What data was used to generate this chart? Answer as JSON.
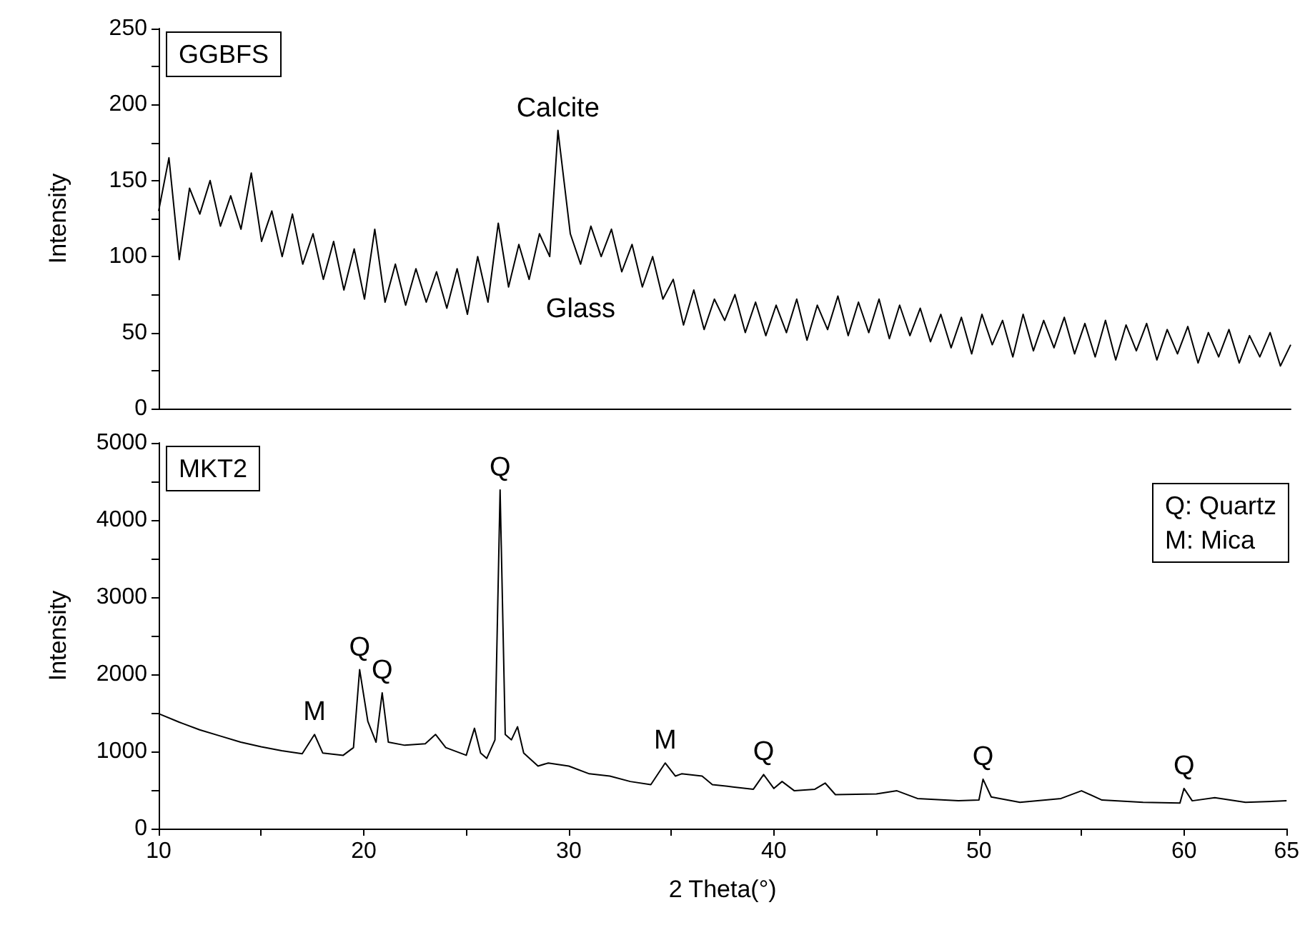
{
  "chart_data": [
    {
      "type": "line",
      "ylabel": "Intensity",
      "xlim": [
        10,
        65
      ],
      "ylim": [
        0,
        250
      ],
      "yticks": [
        0,
        {
          "value": 25,
          "label": null
        },
        50,
        {
          "value": 75,
          "label": null
        },
        100,
        {
          "value": 125,
          "label": null
        },
        150,
        {
          "value": 175,
          "label": null
        },
        200,
        {
          "value": 225,
          "label": null
        },
        250
      ],
      "tick_labels": "y",
      "series": [
        {
          "color": "#000000",
          "x": [
            10,
            10.5,
            11,
            11.5,
            12,
            12.5,
            13,
            13.5,
            14,
            14.5,
            15,
            15.5,
            16,
            16.5,
            17,
            17.5,
            18,
            18.5,
            19,
            19.5,
            20,
            20.5,
            21,
            21.5,
            22,
            22.5,
            23,
            23.5,
            24,
            24.5,
            25,
            25.5,
            26,
            26.5,
            27,
            27.5,
            28,
            28.5,
            29,
            29.4,
            30,
            30.5,
            31,
            31.5,
            32,
            32.5,
            33,
            33.5,
            34,
            34.5,
            35,
            35.5,
            36,
            36.5,
            37,
            37.5,
            38,
            38.5,
            39,
            39.5,
            40,
            40.5,
            41,
            41.5,
            42,
            42.5,
            43,
            43.5,
            44,
            44.5,
            45,
            45.5,
            46,
            46.5,
            47,
            47.5,
            48,
            48.5,
            49,
            49.5,
            50,
            50.5,
            51,
            51.5,
            52,
            52.5,
            53,
            53.5,
            54,
            54.5,
            55,
            55.5,
            56,
            56.5,
            57,
            57.5,
            58,
            58.5,
            59,
            59.5,
            60,
            60.5,
            61,
            61.5,
            62,
            62.5,
            63,
            63.5,
            64,
            64.5,
            65
          ],
          "values": [
            130,
            165,
            98,
            145,
            128,
            150,
            120,
            140,
            118,
            155,
            110,
            130,
            100,
            128,
            95,
            115,
            85,
            110,
            78,
            105,
            72,
            118,
            70,
            95,
            68,
            92,
            70,
            90,
            66,
            92,
            62,
            100,
            70,
            122,
            80,
            108,
            85,
            115,
            100,
            183,
            115,
            95,
            120,
            100,
            118,
            90,
            108,
            80,
            100,
            72,
            85,
            55,
            78,
            52,
            72,
            58,
            75,
            50,
            70,
            48,
            68,
            50,
            72,
            45,
            68,
            52,
            74,
            48,
            70,
            50,
            72,
            46,
            68,
            48,
            66,
            44,
            62,
            40,
            60,
            36,
            62,
            42,
            58,
            34,
            62,
            38,
            58,
            40,
            60,
            36,
            56,
            34,
            58,
            32,
            55,
            38,
            56,
            32,
            52,
            36,
            54,
            30,
            50,
            34,
            52,
            30,
            48,
            34,
            50,
            28,
            42
          ]
        }
      ],
      "annotations": [
        "GGBFS",
        {
          "text": "Calcite",
          "x": 29.4,
          "y": 183
        },
        {
          "text": "Glass",
          "x": 30.5,
          "y": 95
        }
      ]
    },
    {
      "type": "line",
      "xlabel": "2 Theta(°)",
      "ylabel": "Intensity",
      "xlim": [
        10,
        65
      ],
      "xticks": [
        10,
        {
          "value": 15,
          "label": null
        },
        20,
        {
          "value": 25,
          "label": null
        },
        30,
        {
          "value": 35,
          "label": null
        },
        40,
        {
          "value": 45,
          "label": null
        },
        50,
        {
          "value": 55,
          "label": null
        },
        60,
        65
      ],
      "ylim": [
        0,
        5000
      ],
      "yticks": [
        0,
        {
          "value": 500,
          "label": null
        },
        1000,
        {
          "value": 1500,
          "label": null
        },
        2000,
        {
          "value": 2500,
          "label": null
        },
        3000,
        {
          "value": 3500,
          "label": null
        },
        4000,
        {
          "value": 4500,
          "label": null
        },
        5000
      ],
      "series": [
        {
          "color": "#000000",
          "x": [
            10,
            11,
            12,
            13,
            14,
            15,
            16,
            17,
            17.6,
            18,
            19,
            19.5,
            19.8,
            20.2,
            20.6,
            20.9,
            21.2,
            22,
            23,
            23.5,
            24,
            25,
            25.4,
            25.7,
            26,
            26.4,
            26.65,
            26.9,
            27.2,
            27.5,
            27.8,
            28.5,
            29,
            30,
            31,
            32,
            33,
            34,
            34.7,
            35.2,
            35.5,
            36.5,
            37,
            38,
            39,
            39.5,
            40,
            40.4,
            41,
            42,
            42.5,
            43,
            45,
            46,
            47,
            49,
            50,
            50.2,
            50.6,
            52,
            54,
            55,
            56,
            58,
            59.8,
            60,
            60.4,
            61.5,
            63,
            65
          ],
          "values": [
            1490,
            1380,
            1280,
            1200,
            1120,
            1060,
            1010,
            970,
            1220,
            980,
            950,
            1050,
            2060,
            1390,
            1120,
            1760,
            1120,
            1080,
            1100,
            1220,
            1050,
            950,
            1300,
            980,
            910,
            1150,
            4390,
            1220,
            1150,
            1320,
            980,
            810,
            850,
            810,
            710,
            680,
            610,
            570,
            850,
            680,
            710,
            680,
            570,
            540,
            510,
            700,
            520,
            610,
            490,
            510,
            590,
            440,
            450,
            490,
            390,
            360,
            370,
            640,
            410,
            340,
            390,
            490,
            370,
            340,
            330,
            520,
            360,
            400,
            340,
            360
          ]
        }
      ],
      "annotations": [
        "MKT2",
        "Q: Quartz",
        "M: Mica",
        {
          "text": "M",
          "x": 17.6,
          "y": 1220
        },
        {
          "text": "Q",
          "x": 19.8,
          "y": 2060
        },
        {
          "text": "Q",
          "x": 20.9,
          "y": 1760
        },
        {
          "text": "Q",
          "x": 26.65,
          "y": 4390
        },
        {
          "text": "M",
          "x": 34.7,
          "y": 850
        },
        {
          "text": "Q",
          "x": 39.5,
          "y": 700
        },
        {
          "text": "Q",
          "x": 50.2,
          "y": 640
        },
        {
          "text": "Q",
          "x": 60,
          "y": 520
        }
      ]
    }
  ]
}
